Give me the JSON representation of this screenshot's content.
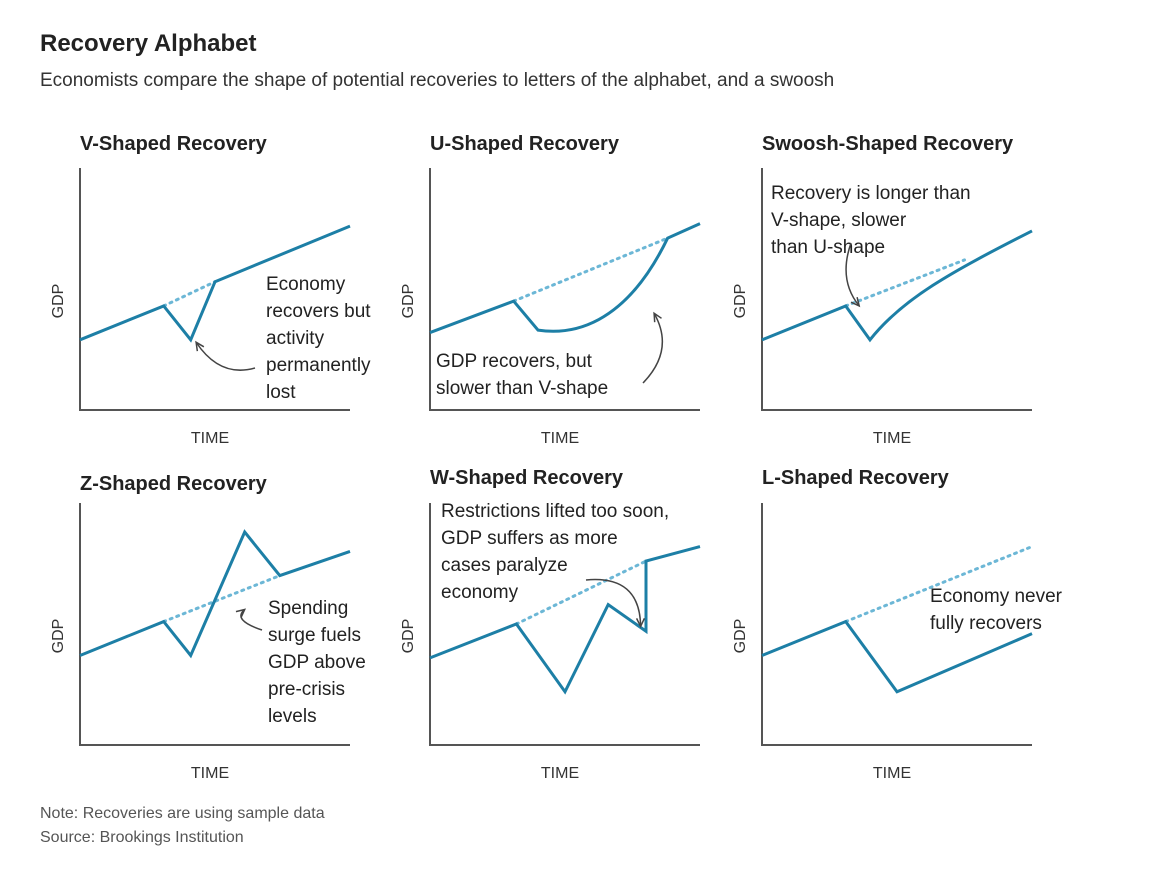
{
  "title": "Recovery Alphabet",
  "subtitle": "Economists compare the shape of potential recoveries to letters of the alphabet, and a swoosh",
  "note": "Note: Recoveries are using sample data",
  "source": "Source: Brookings Institution",
  "colors": {
    "series": "#1d7fa6",
    "trend": "#6cb7d6",
    "axis": "#555555",
    "arrow": "#444444"
  },
  "chart_data": [
    {
      "type": "line",
      "title": "V-Shaped Recovery",
      "xlabel": "TIME",
      "ylabel": "GDP",
      "xlim": [
        0,
        100
      ],
      "ylim": [
        0,
        100
      ],
      "series": [
        {
          "name": "GDP",
          "x": [
            0,
            31,
            41,
            50,
            100
          ],
          "y": [
            29,
            43,
            29,
            53,
            76
          ]
        }
      ],
      "trend": {
        "x": [
          31,
          50
        ],
        "y": [
          43,
          53
        ]
      },
      "annotation": {
        "lines": [
          "Economy",
          "recovers but",
          "activity",
          "permanently",
          "lost"
        ],
        "arrow_target": [
          43,
          28
        ]
      }
    },
    {
      "type": "line",
      "title": "U-Shaped Recovery",
      "xlabel": "TIME",
      "ylabel": "GDP",
      "xlim": [
        0,
        100
      ],
      "ylim": [
        0,
        100
      ],
      "series": [
        {
          "name": "GDP",
          "x": [
            0,
            31,
            40,
            49,
            58,
            67,
            76,
            82,
            88,
            100
          ],
          "y": [
            32,
            45,
            33,
            32,
            34,
            40,
            52,
            60,
            71,
            77
          ]
        }
      ],
      "trend": {
        "x": [
          31,
          88
        ],
        "y": [
          45,
          71
        ]
      },
      "annotation": {
        "lines": [
          "GDP recovers, but",
          "slower than V-shape"
        ],
        "arrow_target": [
          83,
          40
        ]
      }
    },
    {
      "type": "line",
      "title": "Swoosh-Shaped Recovery",
      "xlabel": "TIME",
      "ylabel": "GDP",
      "xlim": [
        0,
        100
      ],
      "ylim": [
        0,
        100
      ],
      "series": [
        {
          "name": "GDP",
          "x": [
            0,
            31,
            40,
            50,
            60,
            70,
            80,
            90,
            100
          ],
          "y": [
            29,
            43,
            29,
            39,
            48,
            55,
            61,
            67,
            74
          ]
        }
      ],
      "trend": {
        "x": [
          31,
          75
        ],
        "y": [
          43,
          62
        ]
      },
      "annotation": {
        "lines": [
          "Recovery is longer than",
          "V-shape, slower",
          "than U-shape"
        ],
        "arrow_target": [
          36,
          43
        ]
      }
    },
    {
      "type": "line",
      "title": "Z-Shaped Recovery",
      "xlabel": "TIME",
      "ylabel": "GDP",
      "xlim": [
        0,
        100
      ],
      "ylim": [
        0,
        100
      ],
      "series": [
        {
          "name": "GDP",
          "x": [
            0,
            31,
            41,
            61,
            74,
            100
          ],
          "y": [
            37,
            51,
            37,
            88,
            70,
            80
          ]
        }
      ],
      "trend": {
        "x": [
          31,
          74
        ],
        "y": [
          51,
          70
        ]
      },
      "annotation": {
        "lines": [
          "Spending",
          "surge fuels",
          "GDP above",
          "pre-crisis",
          "levels"
        ],
        "arrow_target": [
          61,
          56
        ]
      }
    },
    {
      "type": "line",
      "title": "W-Shaped Recovery",
      "xlabel": "TIME",
      "ylabel": "GDP",
      "xlim": [
        0,
        100
      ],
      "ylim": [
        0,
        100
      ],
      "series": [
        {
          "name": "GDP",
          "x": [
            0,
            32,
            50,
            66,
            80,
            80,
            100
          ],
          "y": [
            36,
            50,
            22,
            58,
            47,
            76,
            82
          ]
        }
      ],
      "trend": {
        "x": [
          32,
          80
        ],
        "y": [
          50,
          76
        ]
      },
      "annotation": {
        "lines": [
          "Restrictions lifted too soon,",
          "GDP suffers as more",
          "cases paralyze",
          "economy"
        ],
        "arrow_target": [
          78,
          49
        ]
      }
    },
    {
      "type": "line",
      "title": "L-Shaped Recovery",
      "xlabel": "TIME",
      "ylabel": "GDP",
      "xlim": [
        0,
        100
      ],
      "ylim": [
        0,
        100
      ],
      "series": [
        {
          "name": "GDP",
          "x": [
            0,
            31,
            50,
            100
          ],
          "y": [
            37,
            51,
            22,
            46
          ]
        }
      ],
      "trend": {
        "x": [
          31,
          100
        ],
        "y": [
          51,
          82
        ]
      },
      "annotation": {
        "lines": [
          "Economy never",
          "fully recovers"
        ],
        "arrow_target": null
      }
    }
  ]
}
